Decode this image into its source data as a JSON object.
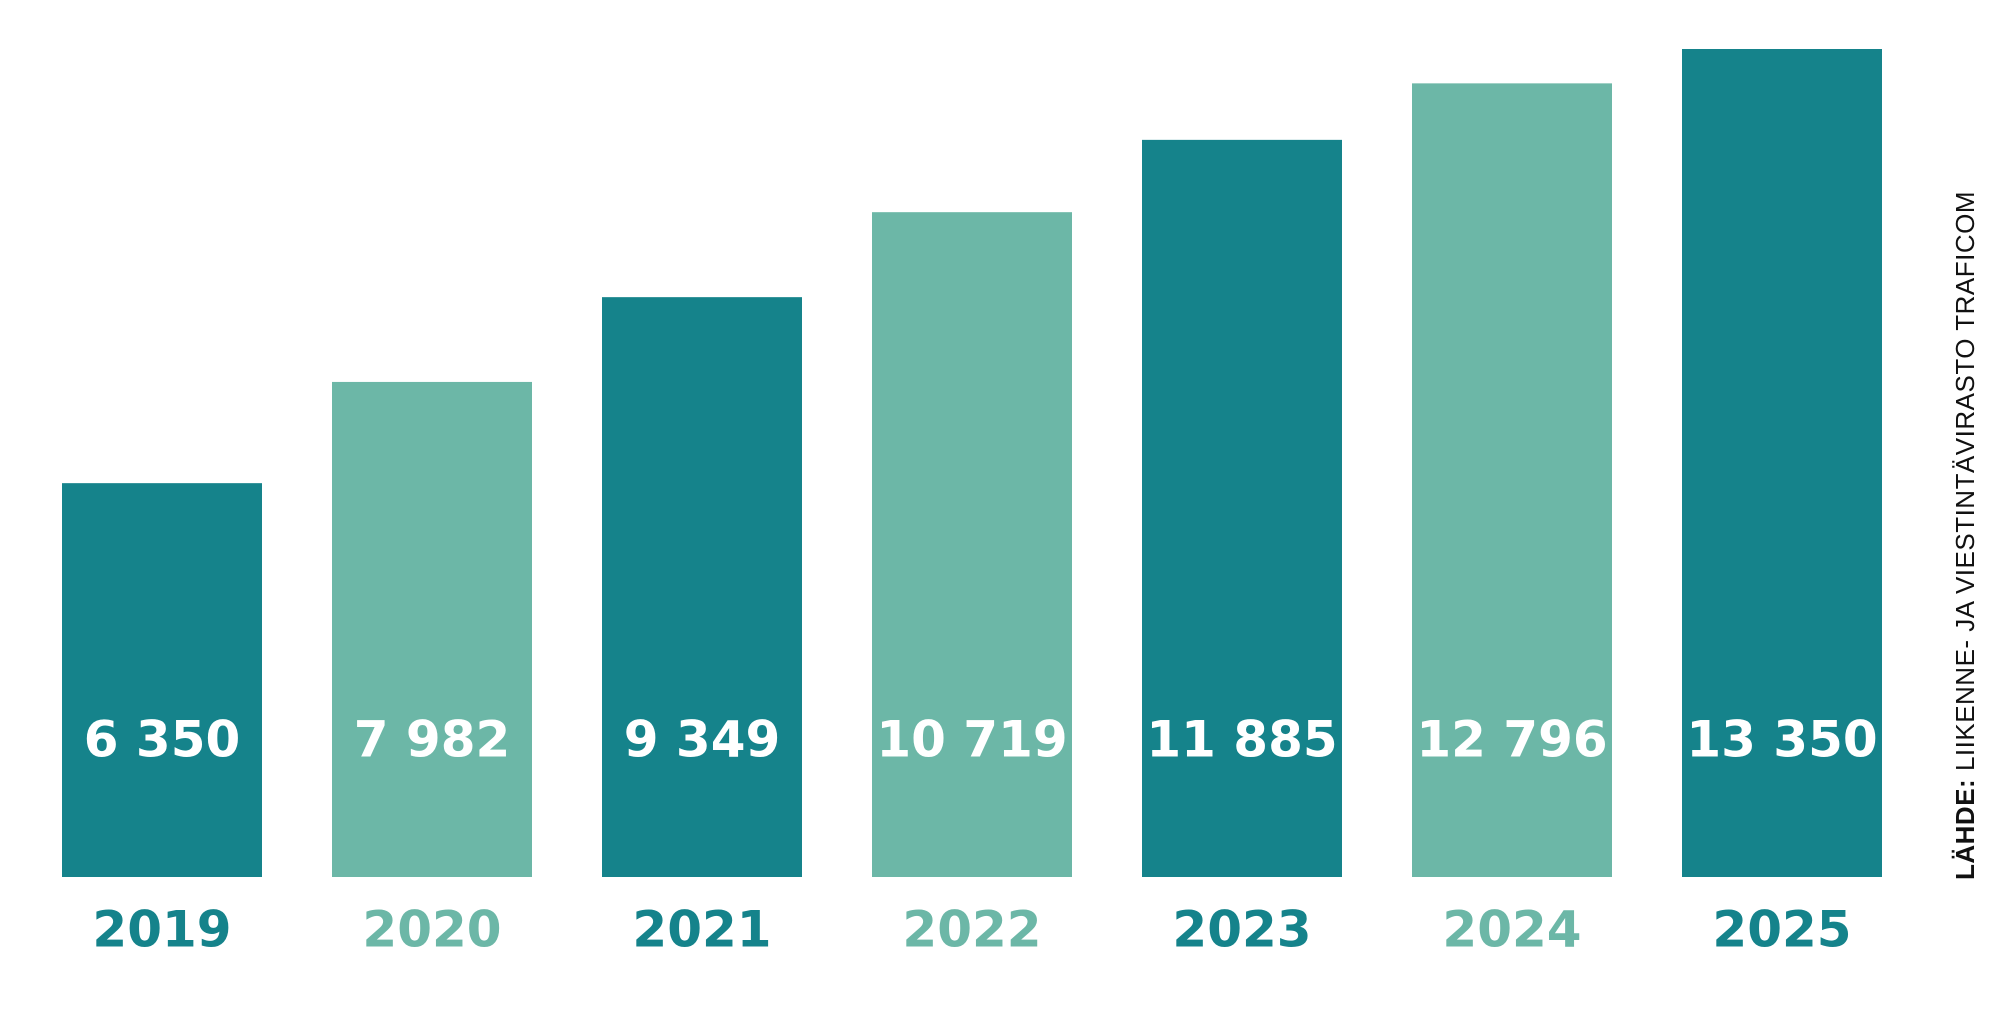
{
  "chart_data": {
    "type": "bar",
    "categories": [
      "2019",
      "2020",
      "2021",
      "2022",
      "2023",
      "2024",
      "2025"
    ],
    "values": [
      6350,
      7982,
      9349,
      10719,
      11885,
      12796,
      13350
    ],
    "value_labels": [
      "6 350",
      "7 982",
      "9 349",
      "10 719",
      "11 885",
      "12 796",
      "13 350"
    ],
    "ylim": [
      0,
      13350
    ],
    "grid": false,
    "colors": {
      "dark": "#15838b",
      "light": "#6cb7a7",
      "pattern": [
        "dark",
        "light",
        "dark",
        "light",
        "dark",
        "light",
        "dark"
      ]
    }
  },
  "source": {
    "label": "LÄHDE:",
    "text": " LIIKENNE- JA VIESTINTÄVIRASTO TRAFICOM"
  }
}
